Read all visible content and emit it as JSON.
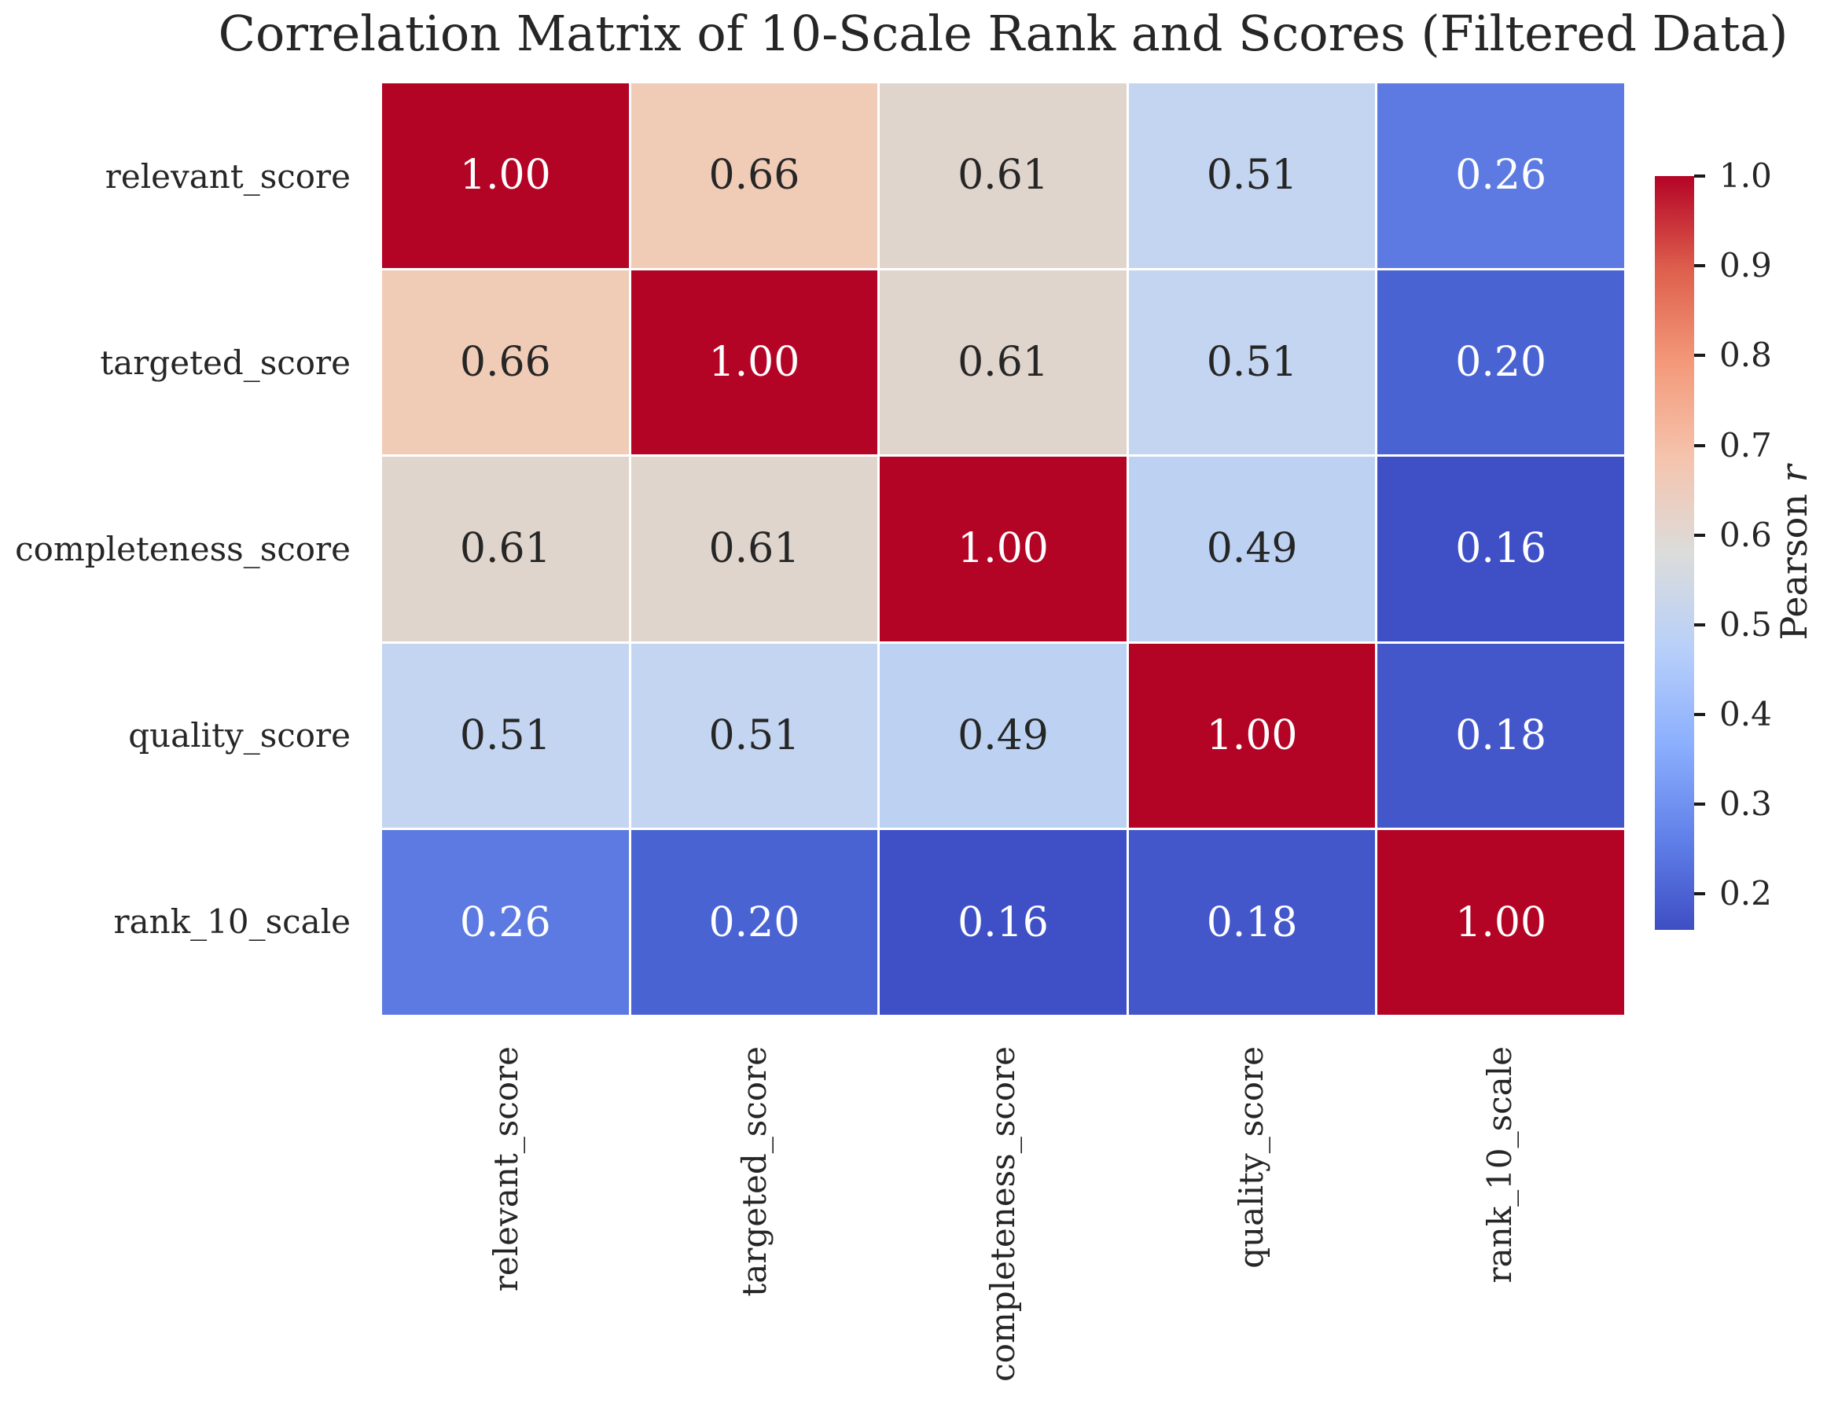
{
  "title": "Correlation Matrix of 10-Scale Rank and Scores (Filtered Data)",
  "chart_data": {
    "type": "heatmap",
    "title": "Correlation Matrix of 10-Scale Rank and Scores (Filtered Data)",
    "categories": [
      "relevant_score",
      "targeted_score",
      "completeness_score",
      "quality_score",
      "rank_10_scale"
    ],
    "matrix": [
      [
        1.0,
        0.66,
        0.61,
        0.51,
        0.26
      ],
      [
        0.66,
        1.0,
        0.61,
        0.51,
        0.2
      ],
      [
        0.61,
        0.61,
        1.0,
        0.49,
        0.16
      ],
      [
        0.51,
        0.51,
        0.49,
        1.0,
        0.18
      ],
      [
        0.26,
        0.2,
        0.16,
        0.18,
        1.0
      ]
    ],
    "value_decimals": 2,
    "vmin": 0.16,
    "vmax": 1.0,
    "colormap": "coolwarm",
    "grid_line_color": "#ffffff",
    "colorbar": {
      "label_text": "Pearson ",
      "label_var": "r",
      "ticks": [
        1.0,
        0.9,
        0.8,
        0.7,
        0.6,
        0.5,
        0.4,
        0.3,
        0.2
      ],
      "tick_decimals": 1
    },
    "palette": {
      "1.00": "#b40426",
      "0.66": "#f0ccb6",
      "0.61": "#e0d5cd",
      "0.51": "#c4d5f1",
      "0.49": "#bdd2f3",
      "0.26": "#5c7ae2",
      "0.20": "#4a63d3",
      "0.18": "#4357cb",
      "0.16": "#3f50c6"
    },
    "light_text_values": [
      "1.00",
      "0.26",
      "0.20",
      "0.18",
      "0.16"
    ],
    "dark_text_color": "#262626",
    "light_text_color": "#ffffff"
  }
}
